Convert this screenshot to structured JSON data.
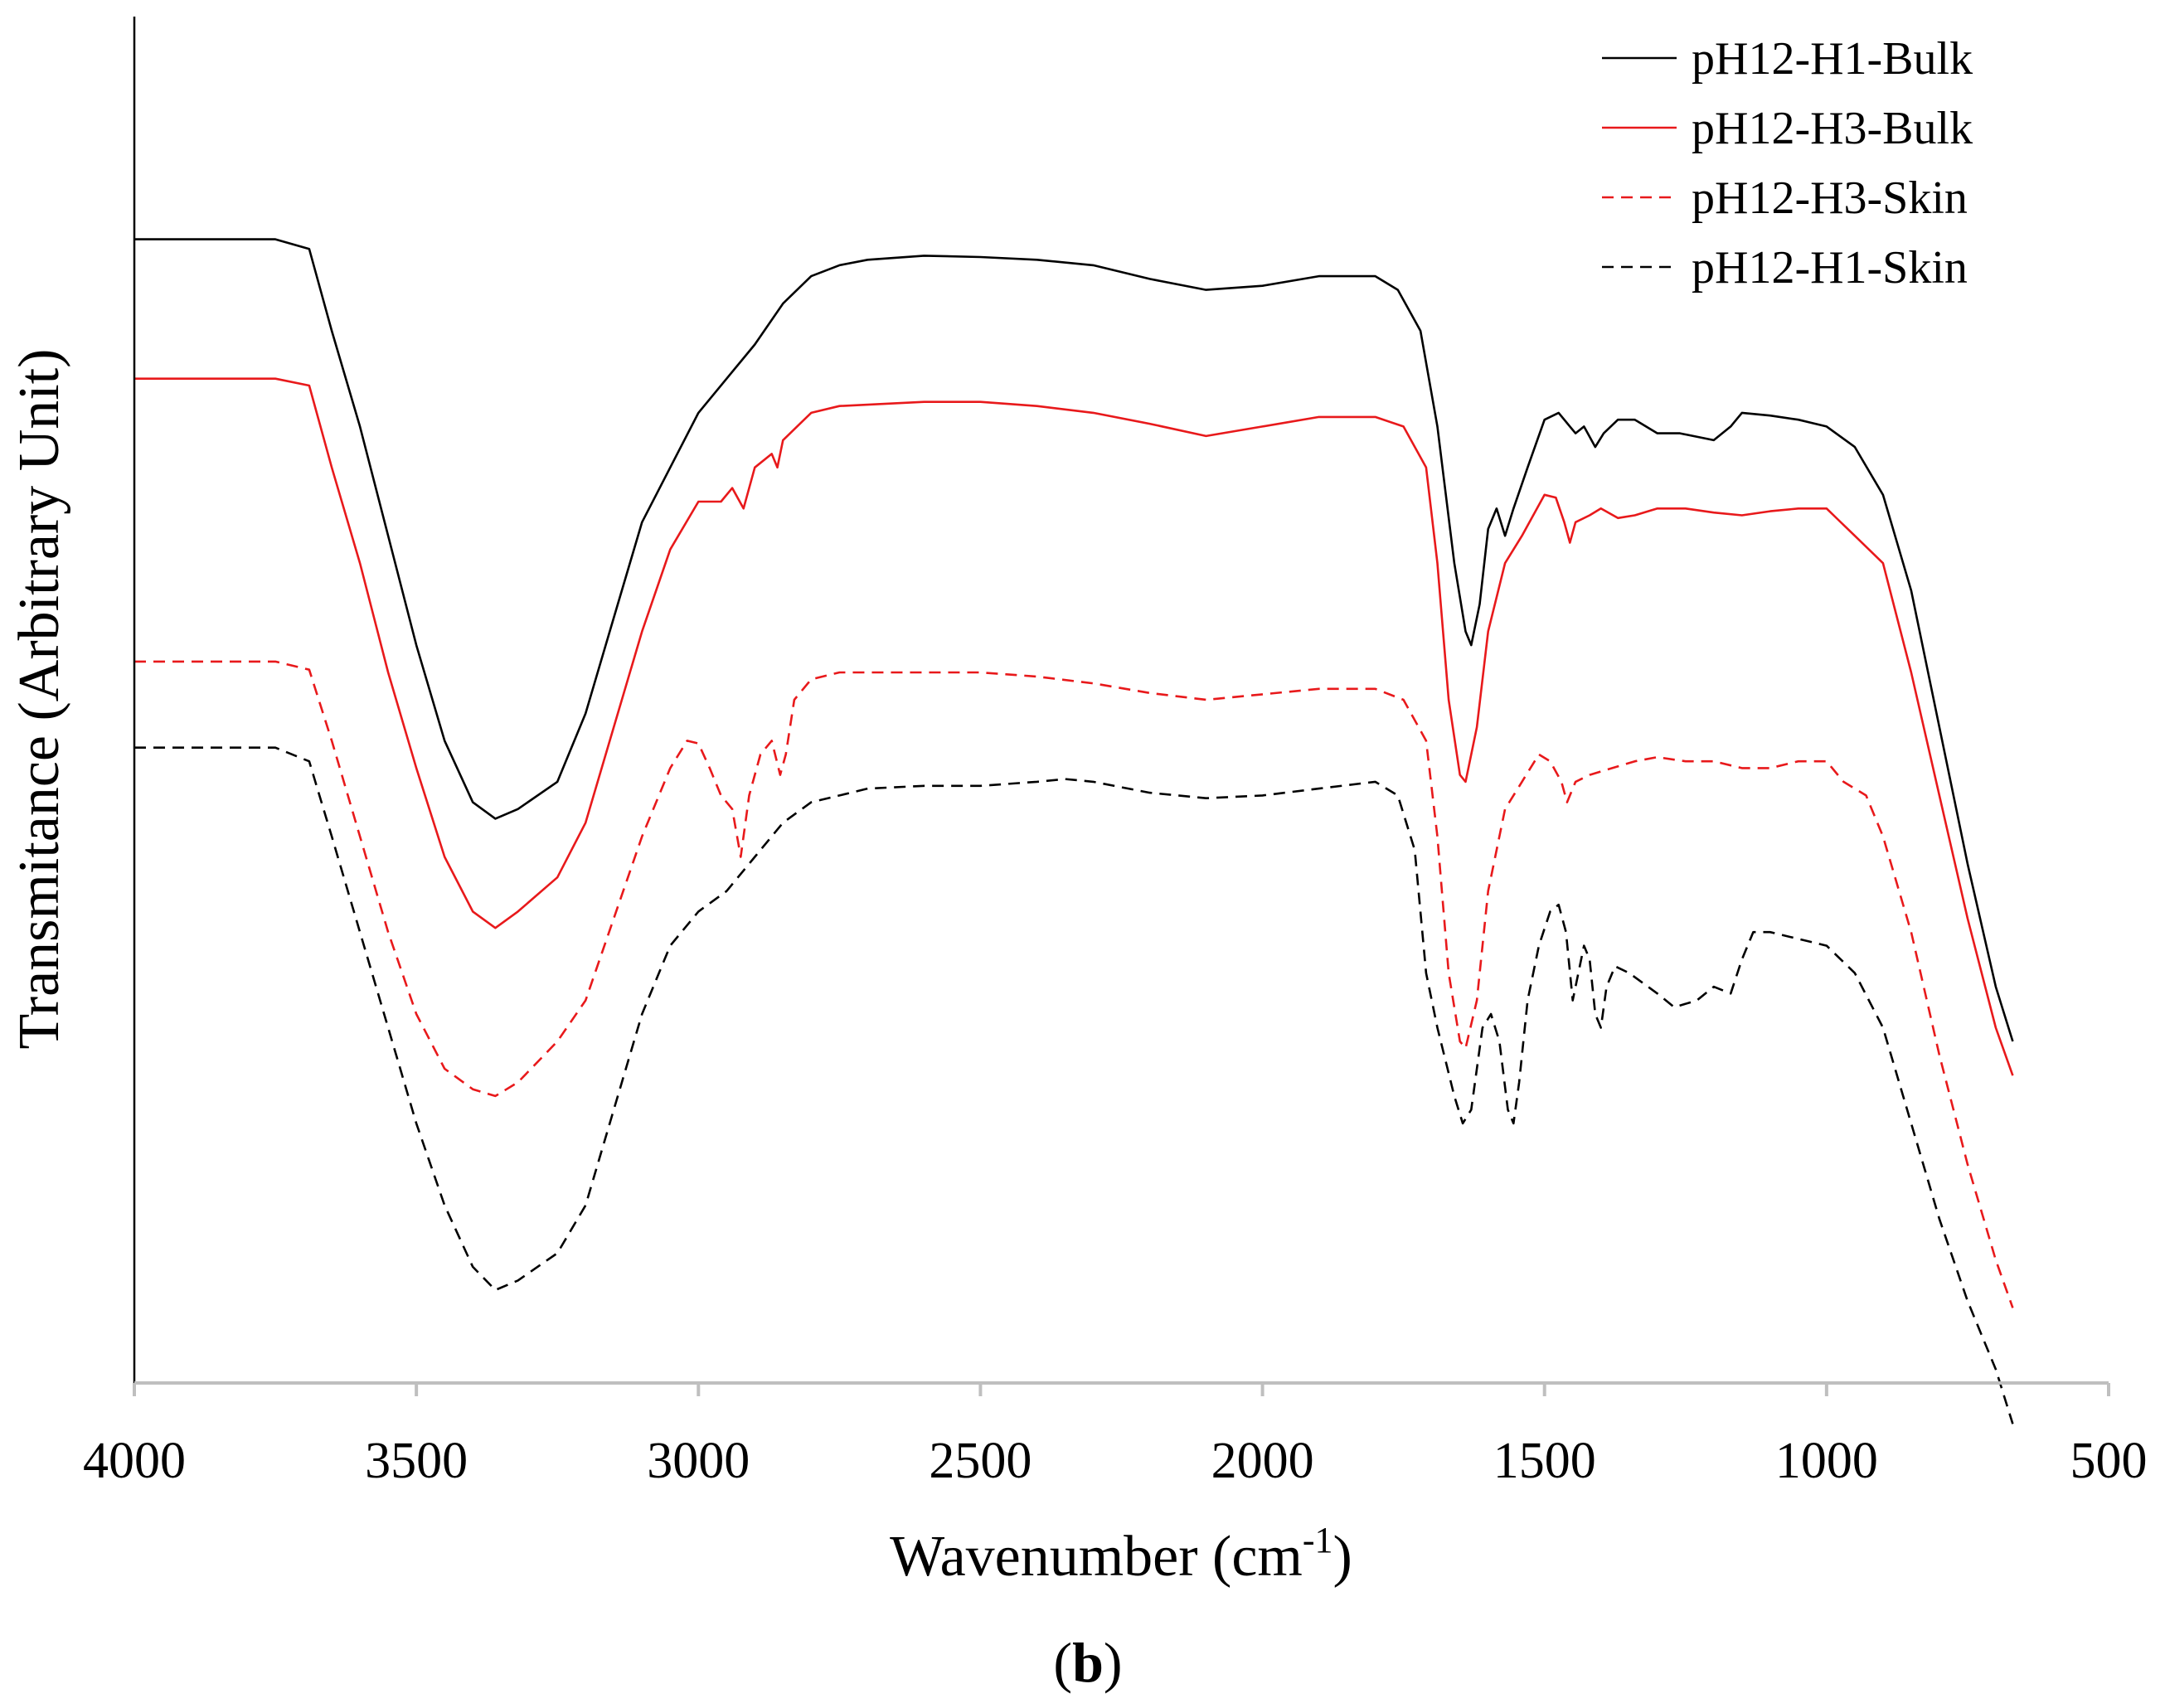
{
  "chart_data": {
    "type": "line",
    "title": "",
    "panel_label": {
      "open": "(",
      "letter": "b",
      "close": ")"
    },
    "xlabel": {
      "main": "Wavenumber (cm",
      "sup": "-1",
      "end": ")"
    },
    "ylabel": "Transmitance (Arbitrary Unit)",
    "xlim": [
      4000,
      500
    ],
    "ylim": [
      0,
      1
    ],
    "x_reversed": true,
    "x_ticks": [
      4000,
      3500,
      3000,
      2500,
      2000,
      1500,
      1000,
      500
    ],
    "x_tick_labels": [
      "4000",
      "3500",
      "3000",
      "2500",
      "2000",
      "1500",
      "1000",
      "500"
    ],
    "y_tick_labels": [],
    "grid": false,
    "legend_position": "top-right",
    "series": [
      {
        "name": "pH12-H1-Bulk",
        "color": "#000000",
        "dash": "solid",
        "points": [
          [
            4000,
            0.837
          ],
          [
            3750,
            0.837
          ],
          [
            3690,
            0.83
          ],
          [
            3650,
            0.77
          ],
          [
            3600,
            0.7
          ],
          [
            3550,
            0.62
          ],
          [
            3500,
            0.54
          ],
          [
            3450,
            0.47
          ],
          [
            3400,
            0.425
          ],
          [
            3360,
            0.413
          ],
          [
            3320,
            0.42
          ],
          [
            3250,
            0.44
          ],
          [
            3200,
            0.49
          ],
          [
            3150,
            0.56
          ],
          [
            3100,
            0.63
          ],
          [
            3050,
            0.67
          ],
          [
            3000,
            0.71
          ],
          [
            2950,
            0.735
          ],
          [
            2900,
            0.76
          ],
          [
            2850,
            0.79
          ],
          [
            2800,
            0.81
          ],
          [
            2750,
            0.818
          ],
          [
            2700,
            0.822
          ],
          [
            2600,
            0.825
          ],
          [
            2500,
            0.824
          ],
          [
            2400,
            0.822
          ],
          [
            2300,
            0.818
          ],
          [
            2200,
            0.808
          ],
          [
            2100,
            0.8
          ],
          [
            2000,
            0.803
          ],
          [
            1900,
            0.81
          ],
          [
            1800,
            0.81
          ],
          [
            1760,
            0.8
          ],
          [
            1720,
            0.77
          ],
          [
            1690,
            0.7
          ],
          [
            1660,
            0.6
          ],
          [
            1640,
            0.55
          ],
          [
            1630,
            0.54
          ],
          [
            1615,
            0.57
          ],
          [
            1600,
            0.625
          ],
          [
            1585,
            0.64
          ],
          [
            1570,
            0.62
          ],
          [
            1555,
            0.64
          ],
          [
            1530,
            0.67
          ],
          [
            1500,
            0.705
          ],
          [
            1475,
            0.71
          ],
          [
            1455,
            0.7
          ],
          [
            1445,
            0.695
          ],
          [
            1430,
            0.7
          ],
          [
            1410,
            0.685
          ],
          [
            1395,
            0.695
          ],
          [
            1370,
            0.705
          ],
          [
            1340,
            0.705
          ],
          [
            1300,
            0.695
          ],
          [
            1260,
            0.695
          ],
          [
            1200,
            0.69
          ],
          [
            1170,
            0.7
          ],
          [
            1150,
            0.71
          ],
          [
            1100,
            0.708
          ],
          [
            1050,
            0.705
          ],
          [
            1000,
            0.7
          ],
          [
            950,
            0.685
          ],
          [
            900,
            0.65
          ],
          [
            850,
            0.58
          ],
          [
            800,
            0.48
          ],
          [
            750,
            0.38
          ],
          [
            700,
            0.29
          ],
          [
            670,
            0.25
          ]
        ]
      },
      {
        "name": "pH12-H3-Bulk",
        "color": "#e8191b",
        "dash": "solid",
        "points": [
          [
            4000,
            0.735
          ],
          [
            3750,
            0.735
          ],
          [
            3690,
            0.73
          ],
          [
            3650,
            0.67
          ],
          [
            3600,
            0.6
          ],
          [
            3550,
            0.52
          ],
          [
            3500,
            0.45
          ],
          [
            3450,
            0.385
          ],
          [
            3400,
            0.345
          ],
          [
            3360,
            0.333
          ],
          [
            3320,
            0.345
          ],
          [
            3250,
            0.37
          ],
          [
            3200,
            0.41
          ],
          [
            3150,
            0.48
          ],
          [
            3100,
            0.55
          ],
          [
            3050,
            0.61
          ],
          [
            3000,
            0.645
          ],
          [
            2960,
            0.645
          ],
          [
            2940,
            0.655
          ],
          [
            2920,
            0.64
          ],
          [
            2900,
            0.67
          ],
          [
            2870,
            0.68
          ],
          [
            2860,
            0.67
          ],
          [
            2850,
            0.69
          ],
          [
            2800,
            0.71
          ],
          [
            2750,
            0.715
          ],
          [
            2600,
            0.718
          ],
          [
            2500,
            0.718
          ],
          [
            2400,
            0.715
          ],
          [
            2300,
            0.71
          ],
          [
            2200,
            0.702
          ],
          [
            2100,
            0.693
          ],
          [
            2000,
            0.7
          ],
          [
            1900,
            0.707
          ],
          [
            1800,
            0.707
          ],
          [
            1750,
            0.7
          ],
          [
            1710,
            0.67
          ],
          [
            1690,
            0.6
          ],
          [
            1670,
            0.5
          ],
          [
            1650,
            0.445
          ],
          [
            1640,
            0.44
          ],
          [
            1620,
            0.48
          ],
          [
            1600,
            0.55
          ],
          [
            1570,
            0.6
          ],
          [
            1540,
            0.62
          ],
          [
            1500,
            0.65
          ],
          [
            1480,
            0.648
          ],
          [
            1465,
            0.63
          ],
          [
            1455,
            0.615
          ],
          [
            1445,
            0.63
          ],
          [
            1420,
            0.635
          ],
          [
            1400,
            0.64
          ],
          [
            1370,
            0.633
          ],
          [
            1340,
            0.635
          ],
          [
            1300,
            0.64
          ],
          [
            1250,
            0.64
          ],
          [
            1200,
            0.637
          ],
          [
            1150,
            0.635
          ],
          [
            1100,
            0.638
          ],
          [
            1050,
            0.64
          ],
          [
            1000,
            0.64
          ],
          [
            980,
            0.632
          ],
          [
            950,
            0.62
          ],
          [
            900,
            0.6
          ],
          [
            850,
            0.52
          ],
          [
            800,
            0.43
          ],
          [
            750,
            0.34
          ],
          [
            700,
            0.26
          ],
          [
            670,
            0.225
          ]
        ]
      },
      {
        "name": "pH12-H3-Skin",
        "color": "#e8191b",
        "dash": "dashed",
        "points": [
          [
            4000,
            0.528
          ],
          [
            3750,
            0.528
          ],
          [
            3690,
            0.522
          ],
          [
            3650,
            0.47
          ],
          [
            3600,
            0.4
          ],
          [
            3550,
            0.33
          ],
          [
            3500,
            0.27
          ],
          [
            3450,
            0.23
          ],
          [
            3400,
            0.215
          ],
          [
            3360,
            0.21
          ],
          [
            3320,
            0.22
          ],
          [
            3250,
            0.25
          ],
          [
            3200,
            0.28
          ],
          [
            3150,
            0.34
          ],
          [
            3100,
            0.4
          ],
          [
            3050,
            0.45
          ],
          [
            3020,
            0.47
          ],
          [
            3000,
            0.468
          ],
          [
            2980,
            0.45
          ],
          [
            2960,
            0.43
          ],
          [
            2940,
            0.42
          ],
          [
            2925,
            0.385
          ],
          [
            2910,
            0.43
          ],
          [
            2890,
            0.46
          ],
          [
            2870,
            0.47
          ],
          [
            2855,
            0.445
          ],
          [
            2845,
            0.46
          ],
          [
            2830,
            0.5
          ],
          [
            2800,
            0.515
          ],
          [
            2750,
            0.52
          ],
          [
            2600,
            0.52
          ],
          [
            2500,
            0.52
          ],
          [
            2400,
            0.517
          ],
          [
            2300,
            0.512
          ],
          [
            2200,
            0.505
          ],
          [
            2100,
            0.5
          ],
          [
            2000,
            0.504
          ],
          [
            1900,
            0.508
          ],
          [
            1800,
            0.508
          ],
          [
            1750,
            0.5
          ],
          [
            1710,
            0.47
          ],
          [
            1690,
            0.4
          ],
          [
            1670,
            0.3
          ],
          [
            1650,
            0.25
          ],
          [
            1640,
            0.245
          ],
          [
            1620,
            0.28
          ],
          [
            1600,
            0.36
          ],
          [
            1570,
            0.42
          ],
          [
            1540,
            0.44
          ],
          [
            1510,
            0.46
          ],
          [
            1490,
            0.455
          ],
          [
            1470,
            0.44
          ],
          [
            1460,
            0.425
          ],
          [
            1445,
            0.44
          ],
          [
            1420,
            0.445
          ],
          [
            1380,
            0.45
          ],
          [
            1340,
            0.455
          ],
          [
            1300,
            0.458
          ],
          [
            1250,
            0.455
          ],
          [
            1200,
            0.455
          ],
          [
            1150,
            0.45
          ],
          [
            1100,
            0.45
          ],
          [
            1050,
            0.455
          ],
          [
            1000,
            0.455
          ],
          [
            970,
            0.44
          ],
          [
            930,
            0.43
          ],
          [
            900,
            0.4
          ],
          [
            850,
            0.33
          ],
          [
            800,
            0.24
          ],
          [
            750,
            0.16
          ],
          [
            700,
            0.09
          ],
          [
            670,
            0.055
          ]
        ]
      },
      {
        "name": "pH12-H1-Skin",
        "color": "#000000",
        "dash": "dashed",
        "points": [
          [
            4000,
            0.465
          ],
          [
            3750,
            0.465
          ],
          [
            3690,
            0.455
          ],
          [
            3650,
            0.4
          ],
          [
            3600,
            0.33
          ],
          [
            3550,
            0.26
          ],
          [
            3500,
            0.19
          ],
          [
            3450,
            0.13
          ],
          [
            3400,
            0.085
          ],
          [
            3360,
            0.068
          ],
          [
            3320,
            0.075
          ],
          [
            3250,
            0.095
          ],
          [
            3200,
            0.13
          ],
          [
            3150,
            0.2
          ],
          [
            3100,
            0.27
          ],
          [
            3050,
            0.32
          ],
          [
            3000,
            0.345
          ],
          [
            2950,
            0.36
          ],
          [
            2900,
            0.385
          ],
          [
            2850,
            0.41
          ],
          [
            2800,
            0.425
          ],
          [
            2750,
            0.43
          ],
          [
            2700,
            0.435
          ],
          [
            2600,
            0.437
          ],
          [
            2500,
            0.437
          ],
          [
            2400,
            0.44
          ],
          [
            2350,
            0.442
          ],
          [
            2300,
            0.44
          ],
          [
            2200,
            0.432
          ],
          [
            2100,
            0.428
          ],
          [
            2000,
            0.43
          ],
          [
            1900,
            0.435
          ],
          [
            1800,
            0.44
          ],
          [
            1760,
            0.43
          ],
          [
            1730,
            0.39
          ],
          [
            1710,
            0.3
          ],
          [
            1690,
            0.26
          ],
          [
            1660,
            0.21
          ],
          [
            1645,
            0.19
          ],
          [
            1630,
            0.2
          ],
          [
            1610,
            0.26
          ],
          [
            1595,
            0.27
          ],
          [
            1580,
            0.25
          ],
          [
            1565,
            0.2
          ],
          [
            1555,
            0.19
          ],
          [
            1545,
            0.22
          ],
          [
            1530,
            0.28
          ],
          [
            1510,
            0.32
          ],
          [
            1490,
            0.345
          ],
          [
            1475,
            0.35
          ],
          [
            1462,
            0.33
          ],
          [
            1450,
            0.28
          ],
          [
            1440,
            0.3
          ],
          [
            1430,
            0.32
          ],
          [
            1420,
            0.31
          ],
          [
            1410,
            0.27
          ],
          [
            1400,
            0.26
          ],
          [
            1390,
            0.29
          ],
          [
            1375,
            0.305
          ],
          [
            1350,
            0.3
          ],
          [
            1300,
            0.285
          ],
          [
            1270,
            0.275
          ],
          [
            1230,
            0.28
          ],
          [
            1200,
            0.29
          ],
          [
            1170,
            0.285
          ],
          [
            1150,
            0.31
          ],
          [
            1130,
            0.33
          ],
          [
            1100,
            0.33
          ],
          [
            1050,
            0.325
          ],
          [
            1000,
            0.32
          ],
          [
            950,
            0.3
          ],
          [
            900,
            0.26
          ],
          [
            850,
            0.19
          ],
          [
            800,
            0.12
          ],
          [
            750,
            0.06
          ],
          [
            700,
            0.01
          ],
          [
            670,
            -0.03
          ]
        ]
      }
    ]
  }
}
